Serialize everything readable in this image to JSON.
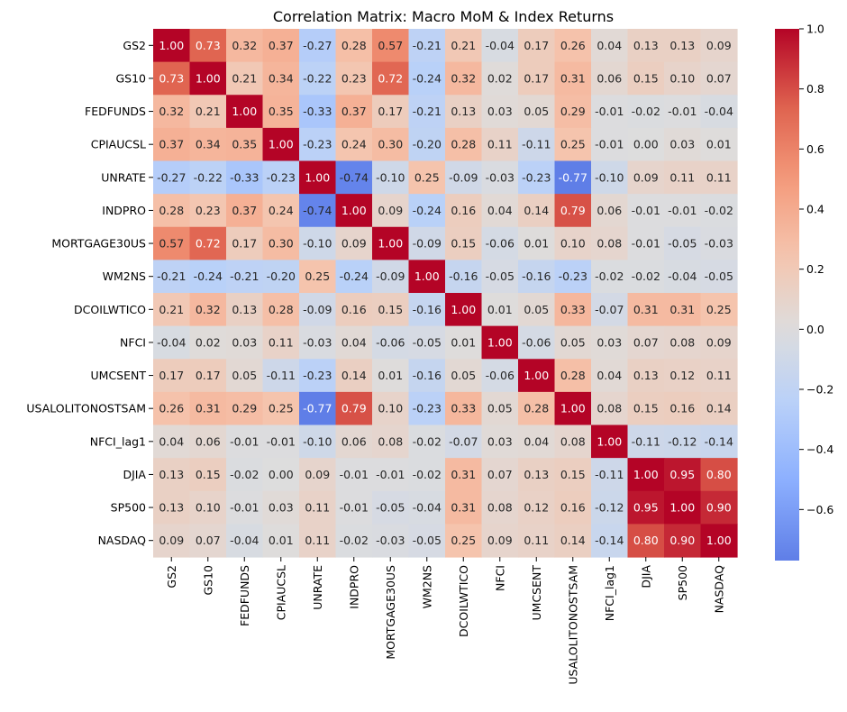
{
  "chart_data": {
    "type": "heatmap",
    "title": "Correlation Matrix: Macro MoM & Index Returns",
    "xlabel": "",
    "ylabel": "",
    "labels": [
      "GS2",
      "GS10",
      "FEDFUNDS",
      "CPIAUCSL",
      "UNRATE",
      "INDPRO",
      "MORTGAGE30US",
      "WM2NS",
      "DCOILWTICO",
      "NFCI",
      "UMCSENT",
      "USALOLITONOSTSAM",
      "NFCI_lag1",
      "DJIA",
      "SP500",
      "NASDAQ"
    ],
    "matrix": [
      [
        1.0,
        0.73,
        0.32,
        0.37,
        -0.27,
        0.28,
        0.57,
        -0.21,
        0.21,
        -0.04,
        0.17,
        0.26,
        0.04,
        0.13,
        0.13,
        0.09
      ],
      [
        0.73,
        1.0,
        0.21,
        0.34,
        -0.22,
        0.23,
        0.72,
        -0.24,
        0.32,
        0.02,
        0.17,
        0.31,
        0.06,
        0.15,
        0.1,
        0.07
      ],
      [
        0.32,
        0.21,
        1.0,
        0.35,
        -0.33,
        0.37,
        0.17,
        -0.21,
        0.13,
        0.03,
        0.05,
        0.29,
        -0.01,
        -0.02,
        -0.01,
        -0.04
      ],
      [
        0.37,
        0.34,
        0.35,
        1.0,
        -0.23,
        0.24,
        0.3,
        -0.2,
        0.28,
        0.11,
        -0.11,
        0.25,
        -0.01,
        0.0,
        0.03,
        0.01
      ],
      [
        -0.27,
        -0.22,
        -0.33,
        -0.23,
        1.0,
        -0.74,
        -0.1,
        0.25,
        -0.09,
        -0.03,
        -0.23,
        -0.77,
        -0.1,
        0.09,
        0.11,
        0.11
      ],
      [
        0.28,
        0.23,
        0.37,
        0.24,
        -0.74,
        1.0,
        0.09,
        -0.24,
        0.16,
        0.04,
        0.14,
        0.79,
        0.06,
        -0.01,
        -0.01,
        -0.02
      ],
      [
        0.57,
        0.72,
        0.17,
        0.3,
        -0.1,
        0.09,
        1.0,
        -0.09,
        0.15,
        -0.06,
        0.01,
        0.1,
        0.08,
        -0.01,
        -0.05,
        -0.03
      ],
      [
        -0.21,
        -0.24,
        -0.21,
        -0.2,
        0.25,
        -0.24,
        -0.09,
        1.0,
        -0.16,
        -0.05,
        -0.16,
        -0.23,
        -0.02,
        -0.02,
        -0.04,
        -0.05
      ],
      [
        0.21,
        0.32,
        0.13,
        0.28,
        -0.09,
        0.16,
        0.15,
        -0.16,
        1.0,
        0.01,
        0.05,
        0.33,
        -0.07,
        0.31,
        0.31,
        0.25
      ],
      [
        -0.04,
        0.02,
        0.03,
        0.11,
        -0.03,
        0.04,
        -0.06,
        -0.05,
        0.01,
        1.0,
        -0.06,
        0.05,
        0.03,
        0.07,
        0.08,
        0.09
      ],
      [
        0.17,
        0.17,
        0.05,
        -0.11,
        -0.23,
        0.14,
        0.01,
        -0.16,
        0.05,
        -0.06,
        1.0,
        0.28,
        0.04,
        0.13,
        0.12,
        0.11
      ],
      [
        0.26,
        0.31,
        0.29,
        0.25,
        -0.77,
        0.79,
        0.1,
        -0.23,
        0.33,
        0.05,
        0.28,
        1.0,
        0.08,
        0.15,
        0.16,
        0.14
      ],
      [
        0.04,
        0.06,
        -0.01,
        -0.01,
        -0.1,
        0.06,
        0.08,
        -0.02,
        -0.07,
        0.03,
        0.04,
        0.08,
        1.0,
        -0.11,
        -0.12,
        -0.14
      ],
      [
        0.13,
        0.15,
        -0.02,
        0.0,
        0.09,
        -0.01,
        -0.01,
        -0.02,
        0.31,
        0.07,
        0.13,
        0.15,
        -0.11,
        1.0,
        0.95,
        0.8
      ],
      [
        0.13,
        0.1,
        -0.01,
        0.03,
        0.11,
        -0.01,
        -0.05,
        -0.04,
        0.31,
        0.08,
        0.12,
        0.16,
        -0.12,
        0.95,
        1.0,
        0.9
      ],
      [
        0.09,
        0.07,
        -0.04,
        0.01,
        0.11,
        -0.02,
        -0.03,
        -0.05,
        0.25,
        0.09,
        0.11,
        0.14,
        -0.14,
        0.8,
        0.9,
        1.0
      ]
    ],
    "colormap": "coolwarm",
    "vmin": -0.77,
    "vmax": 1.0,
    "center": 0,
    "colorbar_ticks": [
      1.0,
      0.8,
      0.6,
      0.4,
      0.2,
      0.0,
      -0.2,
      -0.4,
      -0.6
    ],
    "colorbar_tick_labels": [
      "1.0",
      "0.8",
      "0.6",
      "0.4",
      "0.2",
      "0.0",
      "−0.2",
      "−0.4",
      "−0.6"
    ]
  }
}
